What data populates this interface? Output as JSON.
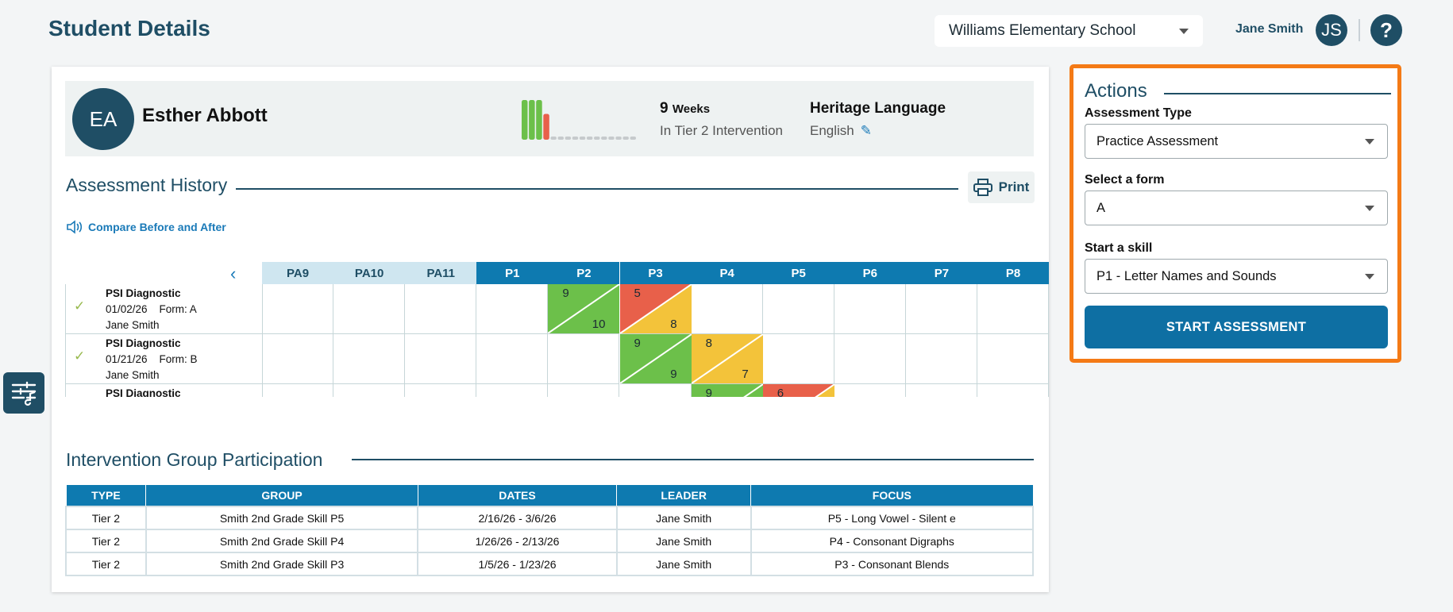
{
  "header": {
    "title": "Student Details",
    "school": "Williams Elementary School",
    "user_name": "Jane Smith",
    "user_initials": "JS",
    "help_icon": "help-icon"
  },
  "student": {
    "initials": "EA",
    "name": "Esther Abbott",
    "weeks_value": "9",
    "weeks_unit": "Weeks",
    "weeks_label": "In Tier 2 Intervention",
    "language_title": "Heritage Language",
    "language_value": "English",
    "week_bars": [
      {
        "status": "green",
        "level": 1.0
      },
      {
        "status": "green",
        "level": 1.0
      },
      {
        "status": "green",
        "level": 1.0
      },
      {
        "status": "red",
        "level": 0.65
      },
      {
        "status": "empty"
      },
      {
        "status": "empty"
      },
      {
        "status": "empty"
      },
      {
        "status": "empty"
      },
      {
        "status": "empty"
      },
      {
        "status": "empty"
      },
      {
        "status": "empty"
      },
      {
        "status": "empty"
      },
      {
        "status": "empty"
      },
      {
        "status": "empty"
      },
      {
        "status": "empty"
      },
      {
        "status": "empty"
      }
    ]
  },
  "assessment_history": {
    "title": "Assessment History",
    "print_label": "Print",
    "compare_label": "Compare Before and After",
    "columns": [
      {
        "label": "PA9",
        "kind": "pa"
      },
      {
        "label": "PA10",
        "kind": "pa"
      },
      {
        "label": "PA11",
        "kind": "pa"
      },
      {
        "label": "P1",
        "kind": "p"
      },
      {
        "label": "P2",
        "kind": "p"
      },
      {
        "label": "P3",
        "kind": "p"
      },
      {
        "label": "P4",
        "kind": "p"
      },
      {
        "label": "P5",
        "kind": "p"
      },
      {
        "label": "P6",
        "kind": "p"
      },
      {
        "label": "P7",
        "kind": "p"
      },
      {
        "label": "P8",
        "kind": "p"
      }
    ],
    "rows": [
      {
        "name": "PSI Diagnostic",
        "date": "01/02/26",
        "form": "Form: A",
        "teacher": "Jane Smith",
        "scores": [
          {
            "col": "P2",
            "top": "9",
            "bottom": "10",
            "top_color": "green",
            "bottom_color": "green"
          },
          {
            "col": "P3",
            "top": "5",
            "bottom": "8",
            "top_color": "red",
            "bottom_color": "yellow"
          }
        ]
      },
      {
        "name": "PSI Diagnostic",
        "date": "01/21/26",
        "form": "Form: B",
        "teacher": "Jane Smith",
        "scores": [
          {
            "col": "P3",
            "top": "9",
            "bottom": "9",
            "top_color": "green",
            "bottom_color": "green"
          },
          {
            "col": "P4",
            "top": "8",
            "bottom": "7",
            "top_color": "yellow",
            "bottom_color": "yellow"
          }
        ]
      },
      {
        "name": "PSI Diagnostic",
        "date": "",
        "form": "",
        "teacher": "",
        "scores": [
          {
            "col": "P4",
            "top": "9",
            "bottom": "",
            "top_color": "green",
            "bottom_color": "green"
          },
          {
            "col": "P5",
            "top": "6",
            "bottom": "",
            "top_color": "red",
            "bottom_color": "yellow"
          }
        ]
      }
    ]
  },
  "intervention": {
    "title": "Intervention Group Participation",
    "headers": [
      "TYPE",
      "GROUP",
      "DATES",
      "LEADER",
      "FOCUS"
    ],
    "rows": [
      [
        "Tier 2",
        "Smith 2nd Grade Skill P5",
        "2/16/26 - 3/6/26",
        "Jane Smith",
        "P5 - Long Vowel - Silent e"
      ],
      [
        "Tier 2",
        "Smith 2nd Grade Skill P4",
        "1/26/26 - 2/13/26",
        "Jane Smith",
        "P4 - Consonant Digraphs"
      ],
      [
        "Tier 2",
        "Smith 2nd Grade Skill P3",
        "1/5/26 - 1/23/26",
        "Jane Smith",
        "P3 - Consonant Blends"
      ]
    ]
  },
  "actions": {
    "title": "Actions",
    "assessment_type_label": "Assessment Type",
    "assessment_type_value": "Practice Assessment",
    "form_label": "Select a form",
    "form_value": "A",
    "skill_label": "Start a skill",
    "skill_value": "P1 - Letter Names and Sounds",
    "start_label": "START ASSESSMENT"
  },
  "colors": {
    "brand": "#1f4e65",
    "header_blue": "#0e7ab0",
    "pa_header": "#cfe6f0",
    "green": "#6cc04a",
    "red": "#e8604a",
    "yellow": "#f3c33a",
    "highlight": "#f47a16"
  }
}
